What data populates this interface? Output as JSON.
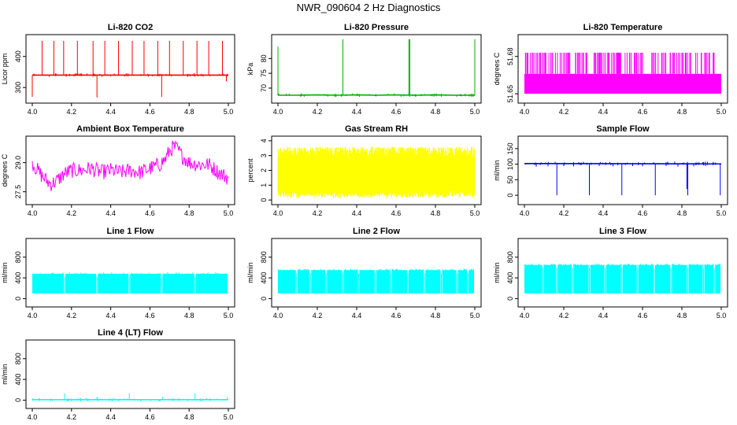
{
  "title": "NWR_090604 2 Hz Diagnostics",
  "chart_data": [
    {
      "type": "line",
      "title": "Li-820 CO2",
      "ylabel": "Licor ppm",
      "color": "#ff0000",
      "xlim": [
        4.0,
        5.0
      ],
      "ylim": [
        260,
        460
      ],
      "x_ticks": [
        "4.0",
        "4.2",
        "4.4",
        "4.6",
        "4.8",
        "5.0"
      ],
      "y_ticks": [
        {
          "v": 300,
          "label": "300"
        },
        {
          "v": 400,
          "label": "400"
        }
      ],
      "series": [
        {
          "x": [
            4.0,
            4.04,
            4.1,
            4.16,
            4.22,
            4.3,
            4.34,
            4.4,
            4.48,
            4.54,
            4.62,
            4.66,
            4.7,
            4.78,
            4.84,
            4.9,
            4.95,
            5.0
          ],
          "y": [
            340,
            340,
            340,
            340,
            340,
            340,
            340,
            340,
            340,
            340,
            340,
            340,
            340,
            340,
            340,
            340,
            340,
            340
          ]
        }
      ],
      "spikes_up": [
        {
          "x": 4.05,
          "y": 450
        },
        {
          "x": 4.11,
          "y": 450
        },
        {
          "x": 4.16,
          "y": 450
        },
        {
          "x": 4.23,
          "y": 450
        },
        {
          "x": 4.31,
          "y": 450
        },
        {
          "x": 4.37,
          "y": 450
        },
        {
          "x": 4.44,
          "y": 450
        },
        {
          "x": 4.51,
          "y": 450
        },
        {
          "x": 4.57,
          "y": 450
        },
        {
          "x": 4.64,
          "y": 450
        },
        {
          "x": 4.7,
          "y": 450
        },
        {
          "x": 4.77,
          "y": 450
        },
        {
          "x": 4.84,
          "y": 450
        },
        {
          "x": 4.9,
          "y": 450
        },
        {
          "x": 4.97,
          "y": 450
        }
      ],
      "spikes_down": [
        {
          "x": 4.0,
          "y": 270
        },
        {
          "x": 4.33,
          "y": 268
        },
        {
          "x": 4.66,
          "y": 270
        },
        {
          "x": 4.99,
          "y": 320
        }
      ]
    },
    {
      "type": "line",
      "title": "Li-820 Pressure",
      "ylabel": "kPa",
      "color": "#00b000",
      "xlim": [
        4.0,
        5.0
      ],
      "ylim": [
        66,
        87
      ],
      "x_ticks": [
        "4.0",
        "4.2",
        "4.4",
        "4.6",
        "4.8",
        "5.0"
      ],
      "y_ticks": [
        {
          "v": 70,
          "label": "70"
        },
        {
          "v": 75,
          "label": "75"
        },
        {
          "v": 80,
          "label": "80"
        }
      ],
      "series": [
        {
          "x": [
            4.0,
            4.1,
            4.2,
            4.3,
            4.4,
            4.5,
            4.6,
            4.7,
            4.8,
            4.9,
            5.0
          ],
          "y": [
            67.6,
            67.6,
            67.7,
            67.6,
            67.7,
            67.6,
            67.7,
            67.6,
            67.7,
            67.6,
            67.6
          ]
        }
      ],
      "spikes_up": [
        {
          "x": 4.0,
          "y": 84.0
        },
        {
          "x": 4.33,
          "y": 86.5
        },
        {
          "x": 4.665,
          "y": 86.5
        },
        {
          "x": 4.67,
          "y": 86.5
        },
        {
          "x": 5.0,
          "y": 86.5
        }
      ]
    },
    {
      "type": "line",
      "title": "Li-820 Temperature",
      "ylabel": "degrees C",
      "color": "#ff00ff",
      "xlim": [
        4.0,
        5.0
      ],
      "ylim": [
        51.645,
        51.695
      ],
      "x_ticks": [
        "4.0",
        "4.2",
        "4.4",
        "4.6",
        "4.8",
        "5.0"
      ],
      "y_ticks": [
        {
          "v": 51.65,
          "label": "51.65"
        },
        {
          "v": 51.68,
          "label": "51.68"
        }
      ],
      "base": 51.65,
      "level": 51.666,
      "peak": 51.683
    },
    {
      "type": "line",
      "title": "Ambient Box Temperature",
      "ylabel": "degrees C",
      "color": "#ff00ff",
      "xlim": [
        4.0,
        5.0
      ],
      "ylim": [
        27.0,
        30.2
      ],
      "x_ticks": [
        "4.0",
        "4.2",
        "4.4",
        "4.6",
        "4.8",
        "5.0"
      ],
      "y_ticks": [
        {
          "v": 27.5,
          "label": "27.5"
        },
        {
          "v": 29.0,
          "label": "29.0"
        }
      ],
      "series": [
        {
          "x": [
            4.0,
            4.02,
            4.05,
            4.08,
            4.1,
            4.13,
            4.16,
            4.2,
            4.25,
            4.3,
            4.35,
            4.4,
            4.45,
            4.5,
            4.55,
            4.6,
            4.65,
            4.68,
            4.7,
            4.72,
            4.74,
            4.76,
            4.8,
            4.85,
            4.9,
            4.95,
            5.0
          ],
          "y": [
            29.0,
            28.7,
            28.3,
            28.0,
            27.9,
            28.1,
            28.4,
            28.6,
            28.6,
            28.7,
            28.5,
            28.6,
            28.5,
            28.6,
            28.5,
            28.7,
            28.9,
            29.2,
            29.6,
            29.8,
            29.7,
            29.4,
            29.0,
            28.9,
            28.9,
            28.5,
            28.2
          ]
        }
      ],
      "noise": 0.8
    },
    {
      "type": "line",
      "title": "Gas Stream RH",
      "ylabel": "percent",
      "color": "#ffff00",
      "xlim": [
        4.0,
        5.0
      ],
      "ylim": [
        -0.1,
        4.1
      ],
      "x_ticks": [
        "4.0",
        "4.2",
        "4.4",
        "4.6",
        "4.8",
        "5.0"
      ],
      "y_ticks": [
        {
          "v": 0,
          "label": "0"
        },
        {
          "v": 1,
          "label": "1"
        },
        {
          "v": 2,
          "label": "2"
        },
        {
          "v": 3,
          "label": "3"
        },
        {
          "v": 4,
          "label": "4"
        }
      ],
      "band_low": [
        0.4,
        0.8
      ],
      "band_high": [
        2.7,
        3.6
      ]
    },
    {
      "type": "line",
      "title": "Sample Flow",
      "ylabel": "ml/min",
      "color": "#0000ff",
      "xlim": [
        4.0,
        5.0
      ],
      "ylim": [
        -20,
        180
      ],
      "x_ticks": [
        "4.0",
        "4.2",
        "4.4",
        "4.6",
        "4.8",
        "5.0"
      ],
      "y_ticks": [
        {
          "v": 0,
          "label": "0"
        },
        {
          "v": 50,
          "label": "50"
        },
        {
          "v": 100,
          "label": "100"
        },
        {
          "v": 150,
          "label": "150"
        }
      ],
      "series": [
        {
          "x": [
            4.0,
            5.0
          ],
          "y": [
            102,
            101
          ]
        }
      ],
      "spikes_down": [
        {
          "x": 4.165,
          "y": 0
        },
        {
          "x": 4.33,
          "y": 0
        },
        {
          "x": 4.495,
          "y": 0
        },
        {
          "x": 4.665,
          "y": 0
        },
        {
          "x": 4.83,
          "y": 0
        },
        {
          "x": 4.995,
          "y": 0
        }
      ],
      "minor_dips": [
        {
          "x": 4.06,
          "y": 92
        },
        {
          "x": 4.12,
          "y": 93
        },
        {
          "x": 4.2,
          "y": 94
        },
        {
          "x": 4.25,
          "y": 93
        },
        {
          "x": 4.38,
          "y": 94
        },
        {
          "x": 4.45,
          "y": 93
        },
        {
          "x": 4.55,
          "y": 94
        },
        {
          "x": 4.6,
          "y": 93
        },
        {
          "x": 4.72,
          "y": 94
        },
        {
          "x": 4.78,
          "y": 92
        },
        {
          "x": 4.86,
          "y": 93
        },
        {
          "x": 4.92,
          "y": 94
        }
      ],
      "dip_anchor": {
        "x": 4.825,
        "y": 20
      }
    },
    {
      "type": "area",
      "title": "Line 1 Flow",
      "ylabel": "ml/min",
      "color": "#00ffff",
      "xlim": [
        4.0,
        5.0
      ],
      "ylim": [
        -100,
        1100
      ],
      "x_ticks": [
        "4.0",
        "4.2",
        "4.4",
        "4.6",
        "4.8",
        "5.0"
      ],
      "y_ticks": [
        {
          "v": 0,
          "label": "0"
        },
        {
          "v": 400,
          "label": "400"
        },
        {
          "v": 800,
          "label": "800"
        }
      ],
      "bottom": 100,
      "top": 480,
      "gaps": [
        4.165,
        4.33,
        4.495,
        4.66,
        4.83
      ]
    },
    {
      "type": "area",
      "title": "Line 2 Flow",
      "ylabel": "ml/min",
      "color": "#00ffff",
      "xlim": [
        4.0,
        5.0
      ],
      "ylim": [
        -100,
        1100
      ],
      "x_ticks": [
        "4.0",
        "4.2",
        "4.4",
        "4.6",
        "4.8",
        "5.0"
      ],
      "y_ticks": [
        {
          "v": 0,
          "label": "0"
        },
        {
          "v": 400,
          "label": "400"
        },
        {
          "v": 800,
          "label": "800"
        }
      ],
      "bottom": 100,
      "top": 550,
      "gaps": [
        4.095,
        4.165,
        4.245,
        4.33,
        4.41,
        4.495,
        4.575,
        4.66,
        4.745,
        4.83,
        4.91,
        4.965
      ]
    },
    {
      "type": "area",
      "title": "Line 3 Flow",
      "ylabel": "ml/min",
      "color": "#00ffff",
      "xlim": [
        4.0,
        5.0
      ],
      "ylim": [
        -100,
        1100
      ],
      "x_ticks": [
        "4.0",
        "4.2",
        "4.4",
        "4.6",
        "4.8",
        "5.0"
      ],
      "y_ticks": [
        {
          "v": 0,
          "label": "0"
        },
        {
          "v": 400,
          "label": "400"
        },
        {
          "v": 800,
          "label": "800"
        }
      ],
      "bottom": 100,
      "top": 650,
      "gaps": [
        4.095,
        4.165,
        4.245,
        4.33,
        4.41,
        4.495,
        4.575,
        4.66,
        4.745,
        4.83,
        4.91,
        4.965
      ]
    },
    {
      "type": "line",
      "title": "Line 4 (LT) Flow",
      "ylabel": "ml/min",
      "color": "#00ffff",
      "xlim": [
        4.0,
        5.0
      ],
      "ylim": [
        -100,
        1100
      ],
      "x_ticks": [
        "4.0",
        "4.2",
        "4.4",
        "4.6",
        "4.8",
        "5.0"
      ],
      "y_ticks": [
        {
          "v": 0,
          "label": "0"
        },
        {
          "v": 400,
          "label": "400"
        },
        {
          "v": 800,
          "label": "800"
        }
      ],
      "series": [
        {
          "x": [
            4.0,
            5.0
          ],
          "y": [
            10,
            10
          ]
        }
      ],
      "spikes_up": [
        {
          "x": 4.165,
          "y": 130
        },
        {
          "x": 4.33,
          "y": 60
        },
        {
          "x": 4.495,
          "y": 130
        },
        {
          "x": 4.665,
          "y": 60
        },
        {
          "x": 4.83,
          "y": 130
        },
        {
          "x": 4.995,
          "y": 60
        }
      ]
    }
  ]
}
